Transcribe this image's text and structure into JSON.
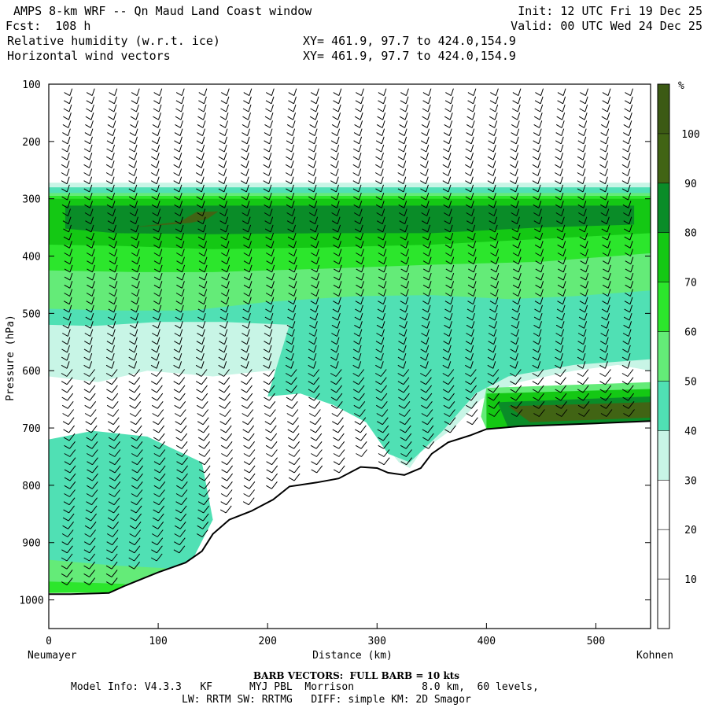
{
  "header": {
    "title": "AMPS 8-km WRF -- Qn Maud Land Coast window",
    "forecast": "Fcst:  108 h",
    "field1": "Relative humidity (w.r.t. ice)",
    "field2": "Horizontal wind vectors",
    "init": "Init: 12 UTC Fri 19 Dec 25",
    "valid": "Valid: 00 UTC Wed 24 Dec 25",
    "xy1": "XY= 461.9, 97.7 to 424.0,154.9",
    "xy2": "XY= 461.9, 97.7 to 424.0,154.9"
  },
  "footer": {
    "barb_note": "BARB VECTORS:  FULL BARB = 10 kts",
    "model_info": "Model Info: V4.3.3   KF      MYJ PBL  Morrison           8.0 km,  60 levels,",
    "physics": "LW: RRTM SW: RRTMG   DIFF: simple KM: 2D Smagor"
  },
  "chart_data": {
    "type": "heatmap",
    "title": "Relative humidity (w.r.t. ice) cross-section with horizontal wind vectors",
    "xlabel": "Distance (km)",
    "ylabel": "Pressure (hPa)",
    "xlim": [
      0,
      550
    ],
    "ylim": [
      1050,
      100
    ],
    "x_ticks": [
      0,
      100,
      200,
      300,
      400,
      500
    ],
    "y_ticks": [
      100,
      200,
      300,
      400,
      500,
      600,
      700,
      800,
      900,
      1000
    ],
    "left_endpoint_label": "Neumayer",
    "right_endpoint_label": "Kohnen",
    "colorbar": {
      "unit": "%",
      "levels": [
        10,
        20,
        30,
        40,
        50,
        60,
        70,
        80,
        90,
        100
      ],
      "colors": [
        "#ffffff",
        "#ffffff",
        "#ffffff",
        "#c8f5e6",
        "#50e0b4",
        "#64eb78",
        "#2ce62c",
        "#14c814",
        "#0a8c28",
        "#416414",
        "#3c5a14"
      ]
    },
    "terrain_pressure_hPa": [
      [
        0,
        990
      ],
      [
        20,
        990
      ],
      [
        55,
        988
      ],
      [
        70,
        975
      ],
      [
        100,
        952
      ],
      [
        125,
        935
      ],
      [
        140,
        915
      ],
      [
        150,
        885
      ],
      [
        165,
        860
      ],
      [
        185,
        845
      ],
      [
        205,
        825
      ],
      [
        220,
        802
      ],
      [
        245,
        795
      ],
      [
        265,
        788
      ],
      [
        285,
        768
      ],
      [
        300,
        770
      ],
      [
        310,
        778
      ],
      [
        325,
        782
      ],
      [
        340,
        770
      ],
      [
        350,
        745
      ],
      [
        365,
        725
      ],
      [
        385,
        713
      ],
      [
        400,
        702
      ],
      [
        430,
        697
      ],
      [
        500,
        692
      ],
      [
        550,
        688
      ]
    ],
    "rh_regions": [
      {
        "level": 30,
        "polygon": [
          [
            0,
            272
          ],
          [
            550,
            272
          ],
          [
            550,
            600
          ],
          [
            520,
            590
          ],
          [
            480,
            600
          ],
          [
            430,
            620
          ],
          [
            395,
            650
          ],
          [
            370,
            700
          ],
          [
            340,
            742
          ],
          [
            330,
            770
          ],
          [
            320,
            760
          ],
          [
            295,
            700
          ],
          [
            280,
            640
          ],
          [
            240,
            600
          ],
          [
            200,
            600
          ],
          [
            150,
            610
          ],
          [
            90,
            600
          ],
          [
            45,
            620
          ],
          [
            0,
            610
          ]
        ]
      },
      {
        "level": 40,
        "polygon": [
          [
            0,
            280
          ],
          [
            550,
            280
          ],
          [
            550,
            580
          ],
          [
            480,
            590
          ],
          [
            420,
            610
          ],
          [
            390,
            640
          ],
          [
            360,
            705
          ],
          [
            330,
            760
          ],
          [
            310,
            745
          ],
          [
            290,
            690
          ],
          [
            260,
            660
          ],
          [
            230,
            640
          ],
          [
            200,
            645
          ],
          [
            220,
            520
          ],
          [
            160,
            515
          ],
          [
            100,
            515
          ],
          [
            40,
            522
          ],
          [
            0,
            520
          ]
        ]
      },
      {
        "level": 50,
        "polygon": [
          [
            0,
            290
          ],
          [
            550,
            290
          ],
          [
            550,
            460
          ],
          [
            480,
            470
          ],
          [
            420,
            475
          ],
          [
            350,
            468
          ],
          [
            280,
            470
          ],
          [
            200,
            480
          ],
          [
            130,
            495
          ],
          [
            60,
            495
          ],
          [
            0,
            492
          ]
        ]
      },
      {
        "level": 60,
        "polygon": [
          [
            0,
            295
          ],
          [
            550,
            295
          ],
          [
            550,
            395
          ],
          [
            450,
            410
          ],
          [
            350,
            415
          ],
          [
            250,
            422
          ],
          [
            150,
            428
          ],
          [
            80,
            428
          ],
          [
            0,
            425
          ]
        ]
      },
      {
        "level": 70,
        "polygon": [
          [
            0,
            300
          ],
          [
            550,
            300
          ],
          [
            550,
            360
          ],
          [
            450,
            370
          ],
          [
            350,
            380
          ],
          [
            250,
            385
          ],
          [
            150,
            388
          ],
          [
            60,
            382
          ],
          [
            0,
            380
          ]
        ]
      },
      {
        "level": 80,
        "polygon": [
          [
            15,
            312
          ],
          [
            535,
            312
          ],
          [
            535,
            345
          ],
          [
            450,
            350
          ],
          [
            350,
            360
          ],
          [
            250,
            360
          ],
          [
            150,
            362
          ],
          [
            60,
            360
          ],
          [
            15,
            352
          ]
        ]
      },
      {
        "level": 90,
        "polygon": [
          [
            75,
            350
          ],
          [
            120,
            340
          ],
          [
            135,
            323
          ],
          [
            155,
            322
          ],
          [
            145,
            335
          ],
          [
            130,
            342
          ],
          [
            90,
            348
          ]
        ]
      },
      {
        "level": 50,
        "polygon": [
          [
            400,
            630
          ],
          [
            550,
            620
          ],
          [
            550,
            690
          ],
          [
            400,
            702
          ],
          [
            395,
            680
          ]
        ]
      },
      {
        "level": 70,
        "polygon": [
          [
            400,
            640
          ],
          [
            550,
            632
          ],
          [
            550,
            690
          ],
          [
            400,
            702
          ]
        ]
      },
      {
        "level": 80,
        "polygon": [
          [
            410,
            655
          ],
          [
            550,
            645
          ],
          [
            550,
            688
          ],
          [
            420,
            700
          ]
        ]
      },
      {
        "level": 90,
        "polygon": [
          [
            420,
            662
          ],
          [
            550,
            655
          ],
          [
            550,
            682
          ],
          [
            440,
            690
          ]
        ]
      },
      {
        "level": 40,
        "polygon": [
          [
            0,
            720
          ],
          [
            40,
            705
          ],
          [
            90,
            715
          ],
          [
            140,
            760
          ],
          [
            150,
            860
          ],
          [
            130,
            935
          ],
          [
            90,
            965
          ],
          [
            50,
            975
          ],
          [
            0,
            975
          ]
        ]
      },
      {
        "level": 50,
        "polygon": [
          [
            0,
            930
          ],
          [
            60,
            940
          ],
          [
            110,
            945
          ],
          [
            120,
            955
          ],
          [
            60,
            985
          ],
          [
            0,
            985
          ]
        ]
      },
      {
        "level": 60,
        "polygon": [
          [
            0,
            968
          ],
          [
            70,
            972
          ],
          [
            60,
            987
          ],
          [
            0,
            988
          ]
        ]
      }
    ]
  }
}
